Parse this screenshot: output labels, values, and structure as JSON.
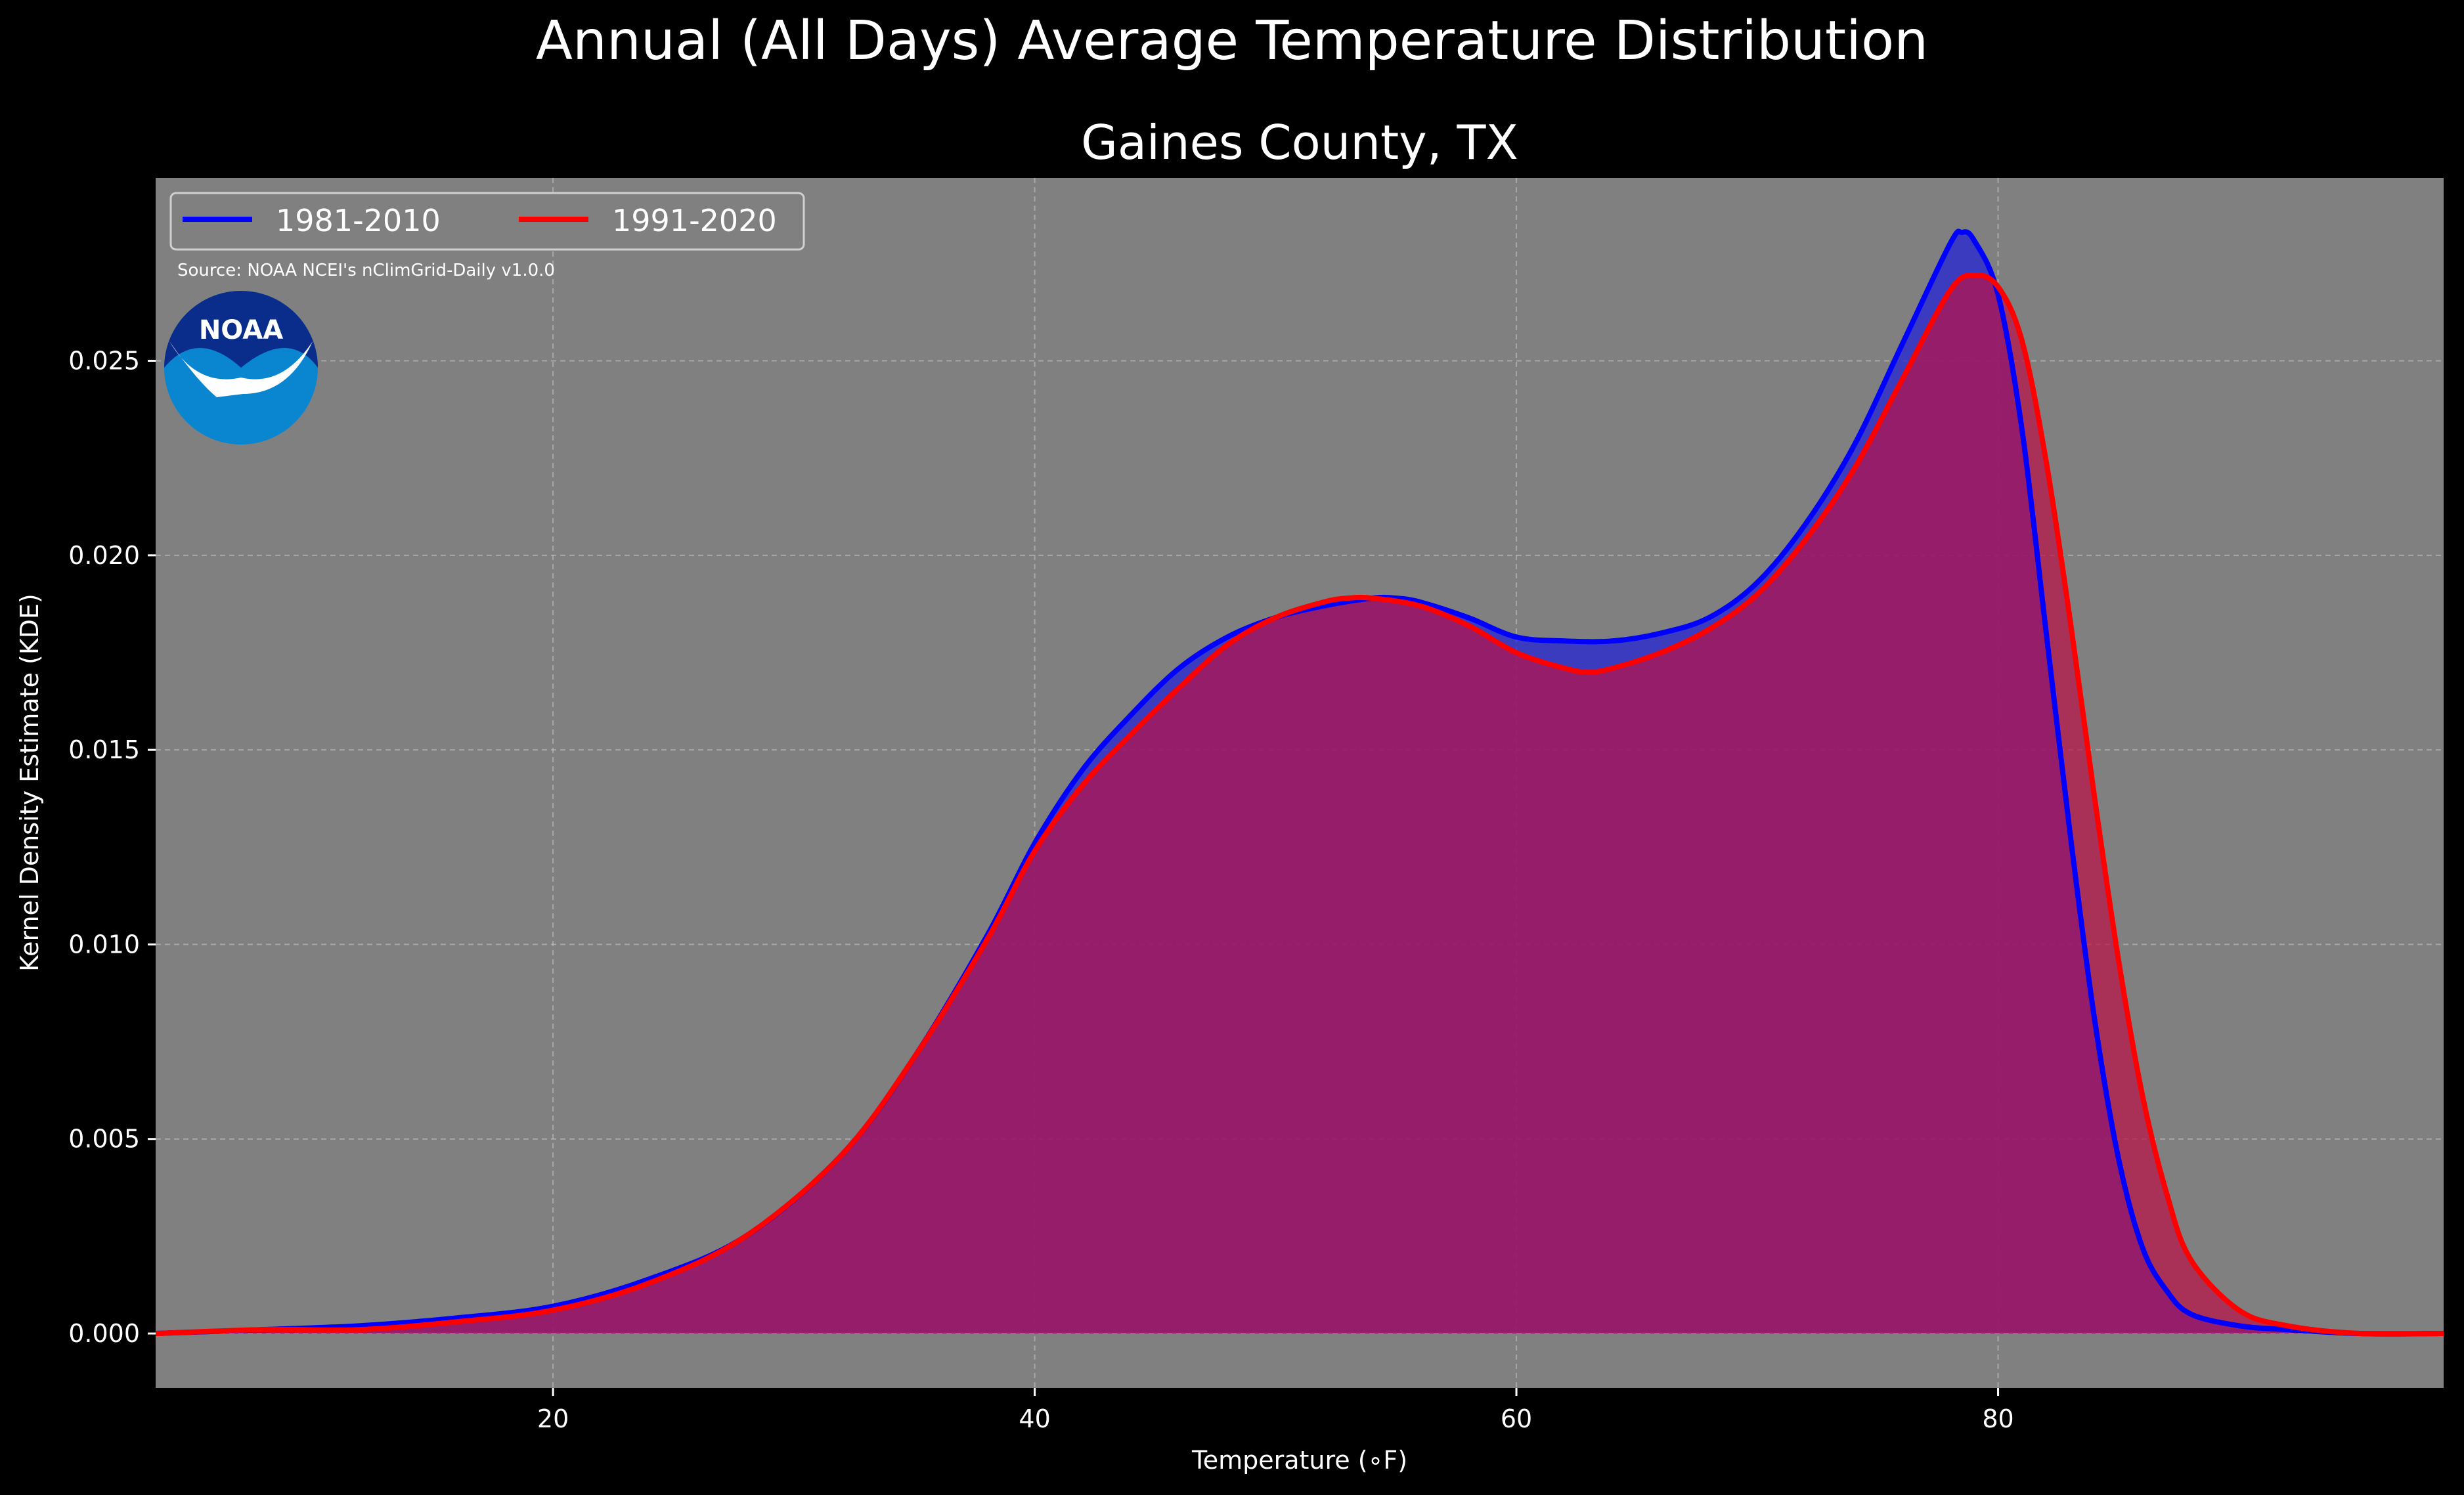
{
  "title": "Annual (All Days) Average Temperature Distribution",
  "subtitle": "Gaines County, TX",
  "source": "Source: NOAA NCEI's nClimGrid-Daily v1.0.0",
  "logo": {
    "text": "NOAA",
    "icon": "noaa-logo",
    "color_dark": "#0a2d8c",
    "color_light": "#0a85d0"
  },
  "colors": {
    "background": "#000000",
    "plot_background": "#808080",
    "series_1981": "#0000ff",
    "series_1991": "#ff0000",
    "fill_1981": "#2020d8",
    "fill_1991": "#b81248"
  },
  "chart_data": {
    "type": "area",
    "title": "Annual (All Days) Average Temperature Distribution",
    "subtitle": "Gaines County, TX",
    "xlabel": "Temperature (∘F)",
    "ylabel": "Kernel Density Estimate (KDE)",
    "xlim": [
      3.5,
      98.5
    ],
    "ylim": [
      -0.0014,
      0.0297
    ],
    "xticks": [
      20,
      40,
      60,
      80
    ],
    "yticks": [
      0.0,
      0.005,
      0.01,
      0.015,
      0.02,
      0.025
    ],
    "ytick_labels": [
      "0.000",
      "0.005",
      "0.010",
      "0.015",
      "0.020",
      "0.025"
    ],
    "grid": true,
    "legend_position": "top-left",
    "series": [
      {
        "name": "1981-2010",
        "color": "#0000ff",
        "x": [
          3.5,
          8,
          12,
          16,
          20,
          24,
          28,
          32,
          35,
          38,
          40,
          42,
          44,
          46,
          48,
          50,
          52,
          54,
          55,
          56,
          58,
          60,
          62,
          64,
          66,
          68,
          70,
          72,
          74,
          76,
          78,
          78.5,
          79,
          80,
          81,
          82,
          83,
          84,
          85,
          86,
          87,
          88,
          90,
          92,
          95,
          98.5
        ],
        "y": [
          0.0,
          0.0001,
          0.0002,
          0.0004,
          0.0007,
          0.0014,
          0.0025,
          0.0046,
          0.0071,
          0.0102,
          0.0126,
          0.0145,
          0.0159,
          0.0171,
          0.0179,
          0.0184,
          0.0187,
          0.0189,
          0.0189,
          0.0188,
          0.0184,
          0.0179,
          0.0178,
          0.0178,
          0.018,
          0.0184,
          0.0193,
          0.0208,
          0.0228,
          0.0254,
          0.028,
          0.0283,
          0.0281,
          0.0267,
          0.0232,
          0.018,
          0.0128,
          0.0081,
          0.0045,
          0.0022,
          0.0011,
          0.0005,
          0.0002,
          0.0001,
          0.0,
          0.0
        ]
      },
      {
        "name": "1991-2020",
        "color": "#ff0000",
        "x": [
          3.5,
          8,
          12,
          16,
          20,
          24,
          28,
          32,
          35,
          38,
          40,
          42,
          44,
          46,
          48,
          50,
          52,
          53,
          54,
          56,
          58,
          60,
          62,
          63,
          64,
          66,
          68,
          70,
          72,
          74,
          76,
          78,
          79,
          80,
          81,
          82,
          83,
          84,
          85,
          86,
          87,
          88,
          90,
          92,
          95,
          98.5
        ],
        "y": [
          0.0,
          0.0001,
          0.0001,
          0.0003,
          0.0006,
          0.0013,
          0.0025,
          0.0046,
          0.0071,
          0.0101,
          0.0124,
          0.0141,
          0.0154,
          0.0166,
          0.0177,
          0.0184,
          0.0188,
          0.0189,
          0.0189,
          0.0187,
          0.0182,
          0.0175,
          0.0171,
          0.017,
          0.0171,
          0.0175,
          0.0181,
          0.019,
          0.0204,
          0.0222,
          0.0245,
          0.0268,
          0.0272,
          0.0269,
          0.0255,
          0.0224,
          0.0183,
          0.0138,
          0.0096,
          0.0061,
          0.0036,
          0.0019,
          0.0006,
          0.0002,
          0.0,
          0.0
        ]
      }
    ]
  }
}
